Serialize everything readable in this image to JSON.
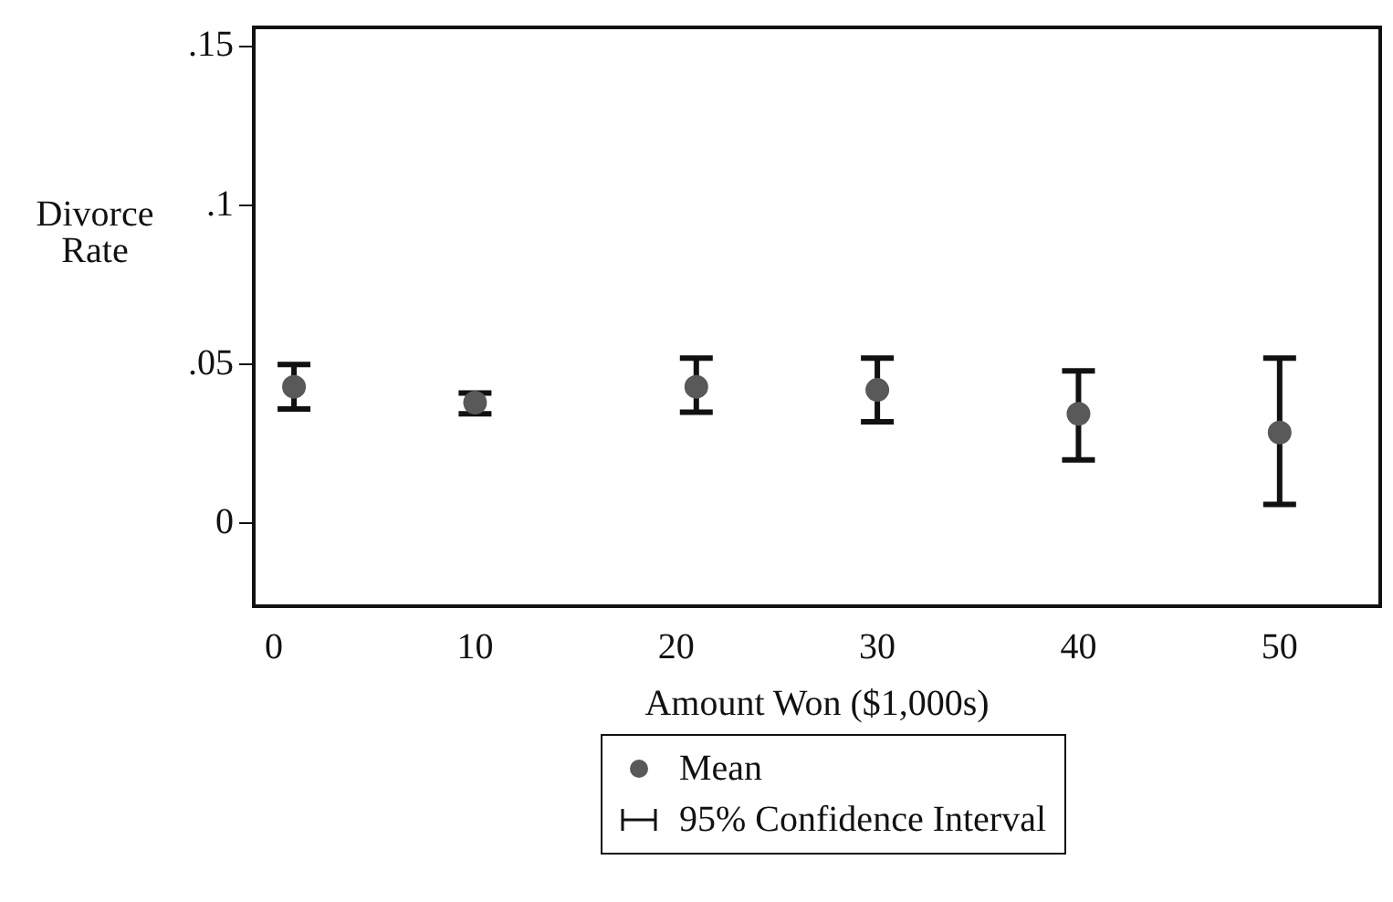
{
  "chart_data": {
    "type": "scatter",
    "xlabel": "Amount Won ($1,000s)",
    "ylabel": "Divorce Rate",
    "x": [
      1,
      10,
      21,
      30,
      40,
      50
    ],
    "series": [
      {
        "name": "Mean",
        "color": "#595959",
        "values": [
          0.043,
          0.038,
          0.043,
          0.042,
          0.0345,
          0.0286
        ],
        "errors": [
          [
            0.036,
            0.05
          ],
          [
            0.0345,
            0.041
          ],
          [
            0.035,
            0.052
          ],
          [
            0.032,
            0.052
          ],
          [
            0.02,
            0.048
          ],
          [
            0.006,
            0.052
          ]
        ]
      }
    ],
    "annotations": [
      "95% Confidence Interval"
    ],
    "xlim": [
      -1,
      55
    ],
    "xticks": [
      0,
      10,
      20,
      30,
      40,
      50
    ],
    "ylim": [
      -0.026,
      0.156
    ],
    "yticks": [
      {
        "value": 0,
        "label": "0"
      },
      {
        "value": 0.05,
        "label": ".05"
      },
      {
        "value": 0.1,
        "label": ".1"
      },
      {
        "value": 0.15,
        "label": ".15"
      }
    ],
    "grid": false,
    "legend": "bottom",
    "marker": "circle"
  }
}
